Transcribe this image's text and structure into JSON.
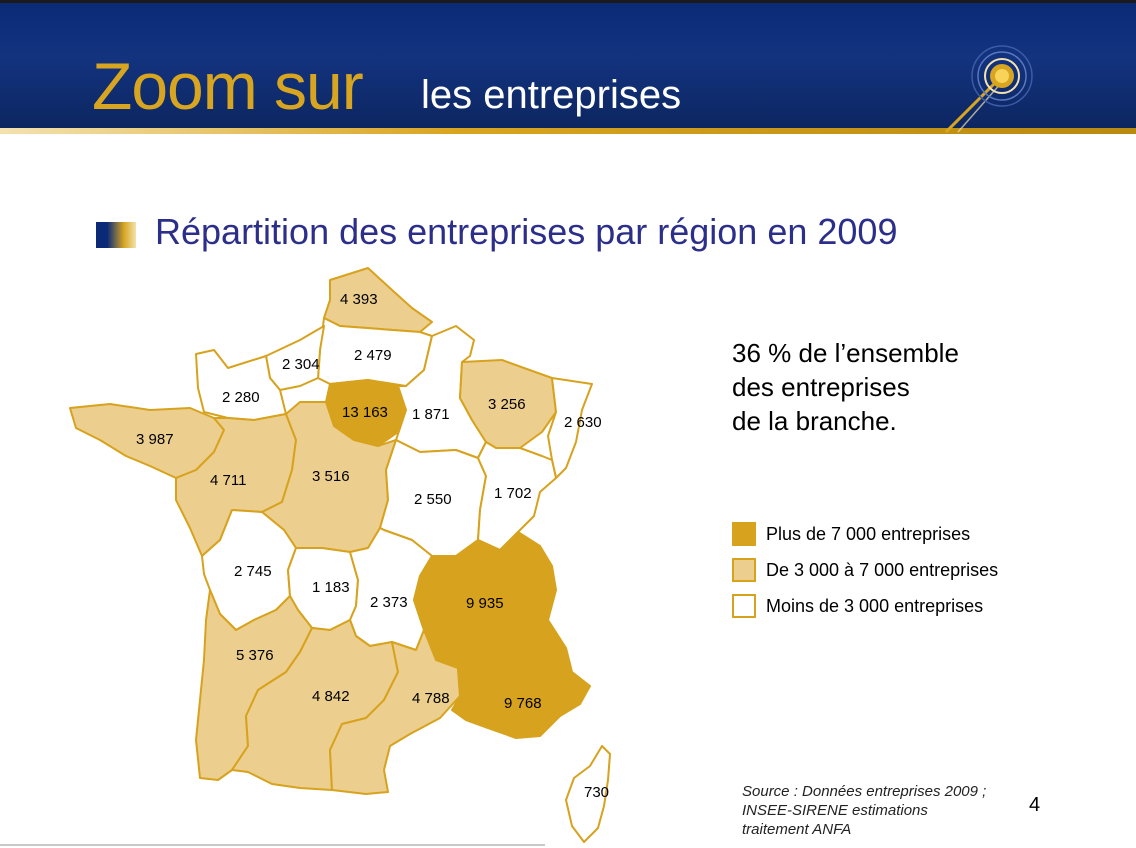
{
  "header": {
    "title": "Zoom sur",
    "subtitle": "les entreprises"
  },
  "section": {
    "heading": "Répartition des entreprises par région en 2009"
  },
  "statement": {
    "lines": [
      "36 % de l’ensemble",
      "des entreprises",
      "de la branche."
    ]
  },
  "legend": {
    "items": [
      {
        "label": "Plus de 7 000 entreprises",
        "level": "high"
      },
      {
        "label": "De 3 000 à 7 000 entreprises",
        "level": "mid"
      },
      {
        "label": "Moins de 3 000 entreprises",
        "level": "low"
      }
    ]
  },
  "colors": {
    "high": "#d7a21d",
    "mid": "#eccf8e",
    "low": "#ffffff",
    "banner": "#0a2a78",
    "title_gold": "#d8a521",
    "heading_blue": "#2c2f8a"
  },
  "regions": [
    {
      "id": "nord-pas-de-calais",
      "value": "4 393",
      "level": "mid"
    },
    {
      "id": "picardie",
      "value": "2 479",
      "level": "low"
    },
    {
      "id": "haute-normandie",
      "value": "2 304",
      "level": "low"
    },
    {
      "id": "basse-normandie",
      "value": "2 280",
      "level": "low"
    },
    {
      "id": "ile-de-france",
      "value": "13 163",
      "level": "high"
    },
    {
      "id": "champagne-ardenne",
      "value": "1 871",
      "level": "low"
    },
    {
      "id": "lorraine",
      "value": "3 256",
      "level": "mid"
    },
    {
      "id": "alsace",
      "value": "2 630",
      "level": "low"
    },
    {
      "id": "bretagne",
      "value": "3 987",
      "level": "mid"
    },
    {
      "id": "pays-de-la-loire",
      "value": "4 711",
      "level": "mid"
    },
    {
      "id": "centre",
      "value": "3 516",
      "level": "mid"
    },
    {
      "id": "bourgogne",
      "value": "2 550",
      "level": "low"
    },
    {
      "id": "franche-comte",
      "value": "1 702",
      "level": "low"
    },
    {
      "id": "poitou-charentes",
      "value": "2 745",
      "level": "low"
    },
    {
      "id": "limousin",
      "value": "1 183",
      "level": "low"
    },
    {
      "id": "auvergne",
      "value": "2 373",
      "level": "low"
    },
    {
      "id": "rhone-alpes",
      "value": "9 935",
      "level": "high"
    },
    {
      "id": "aquitaine",
      "value": "5 376",
      "level": "mid"
    },
    {
      "id": "midi-pyrenees",
      "value": "4 842",
      "level": "mid"
    },
    {
      "id": "languedoc-roussillon",
      "value": "4 788",
      "level": "mid"
    },
    {
      "id": "paca",
      "value": "9 768",
      "level": "high"
    },
    {
      "id": "corse",
      "value": "730",
      "level": "low"
    }
  ],
  "source": {
    "lines": [
      "Source : Données entreprises 2009 ;",
      "INSEE-SIRENE estimations",
      "traitement ANFA"
    ]
  },
  "page_number": "4"
}
